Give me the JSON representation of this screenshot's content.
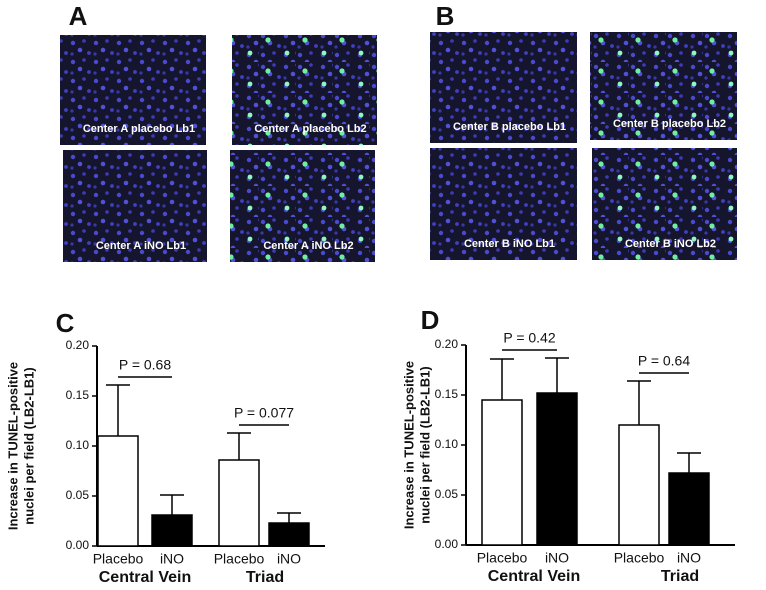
{
  "panels": [
    {
      "letter": "A",
      "images": [
        "Center A placebo Lb1",
        "Center A placebo Lb2",
        "Center A iNO Lb1",
        "Center A iNO Lb2"
      ]
    },
    {
      "letter": "B",
      "images": [
        "Center B placebo Lb1",
        "Center B placebo Lb2",
        "Center B iNO Lb1",
        "Center B iNO Lb2"
      ]
    }
  ],
  "chart_data": [
    {
      "type": "bar",
      "title": "C",
      "y_label": [
        "Increase in TUNEL-positive",
        "nuclei per field (LB2-LB1)"
      ],
      "categories": [
        "Placebo",
        "iNO",
        "Placebo",
        "iNO"
      ],
      "groups": [
        "Central Vein",
        "Triad"
      ],
      "values": [
        0.11,
        0.031,
        0.086,
        0.023
      ],
      "errors": [
        0.051,
        0.02,
        0.027,
        0.01
      ],
      "colors": [
        "#ffffff",
        "#000000",
        "#ffffff",
        "#000000"
      ],
      "annotations": [
        "P = 0.68",
        "P = 0.077"
      ],
      "ylim": [
        0,
        0.2
      ],
      "yticks": [
        {
          "value": 0,
          "label": "0.00"
        },
        {
          "value": 0.05,
          "label": "0.05"
        },
        {
          "value": 0.1,
          "label": "0.10"
        },
        {
          "value": 0.15,
          "label": "0.15"
        },
        {
          "value": 0.2,
          "label": "0.20"
        }
      ]
    },
    {
      "type": "bar",
      "title": "D",
      "y_label": [
        "Increase in TUNEL-positive",
        "nuclei per field (LB2-LB1)"
      ],
      "categories": [
        "Placebo",
        "iNO",
        "Placebo",
        "iNO"
      ],
      "groups": [
        "Central Vein",
        "Triad"
      ],
      "values": [
        0.145,
        0.152,
        0.12,
        0.072
      ],
      "errors": [
        0.041,
        0.035,
        0.044,
        0.02
      ],
      "colors": [
        "#ffffff",
        "#000000",
        "#ffffff",
        "#000000"
      ],
      "annotations": [
        "P = 0.42",
        "P = 0.64"
      ],
      "ylim": [
        0,
        0.2
      ],
      "yticks": [
        {
          "value": 0,
          "label": "0.00"
        },
        {
          "value": 0.05,
          "label": "0.05"
        },
        {
          "value": 0.1,
          "label": "0.10"
        },
        {
          "value": 0.15,
          "label": "0.15"
        },
        {
          "value": 0.2,
          "label": "0.20"
        }
      ]
    }
  ]
}
